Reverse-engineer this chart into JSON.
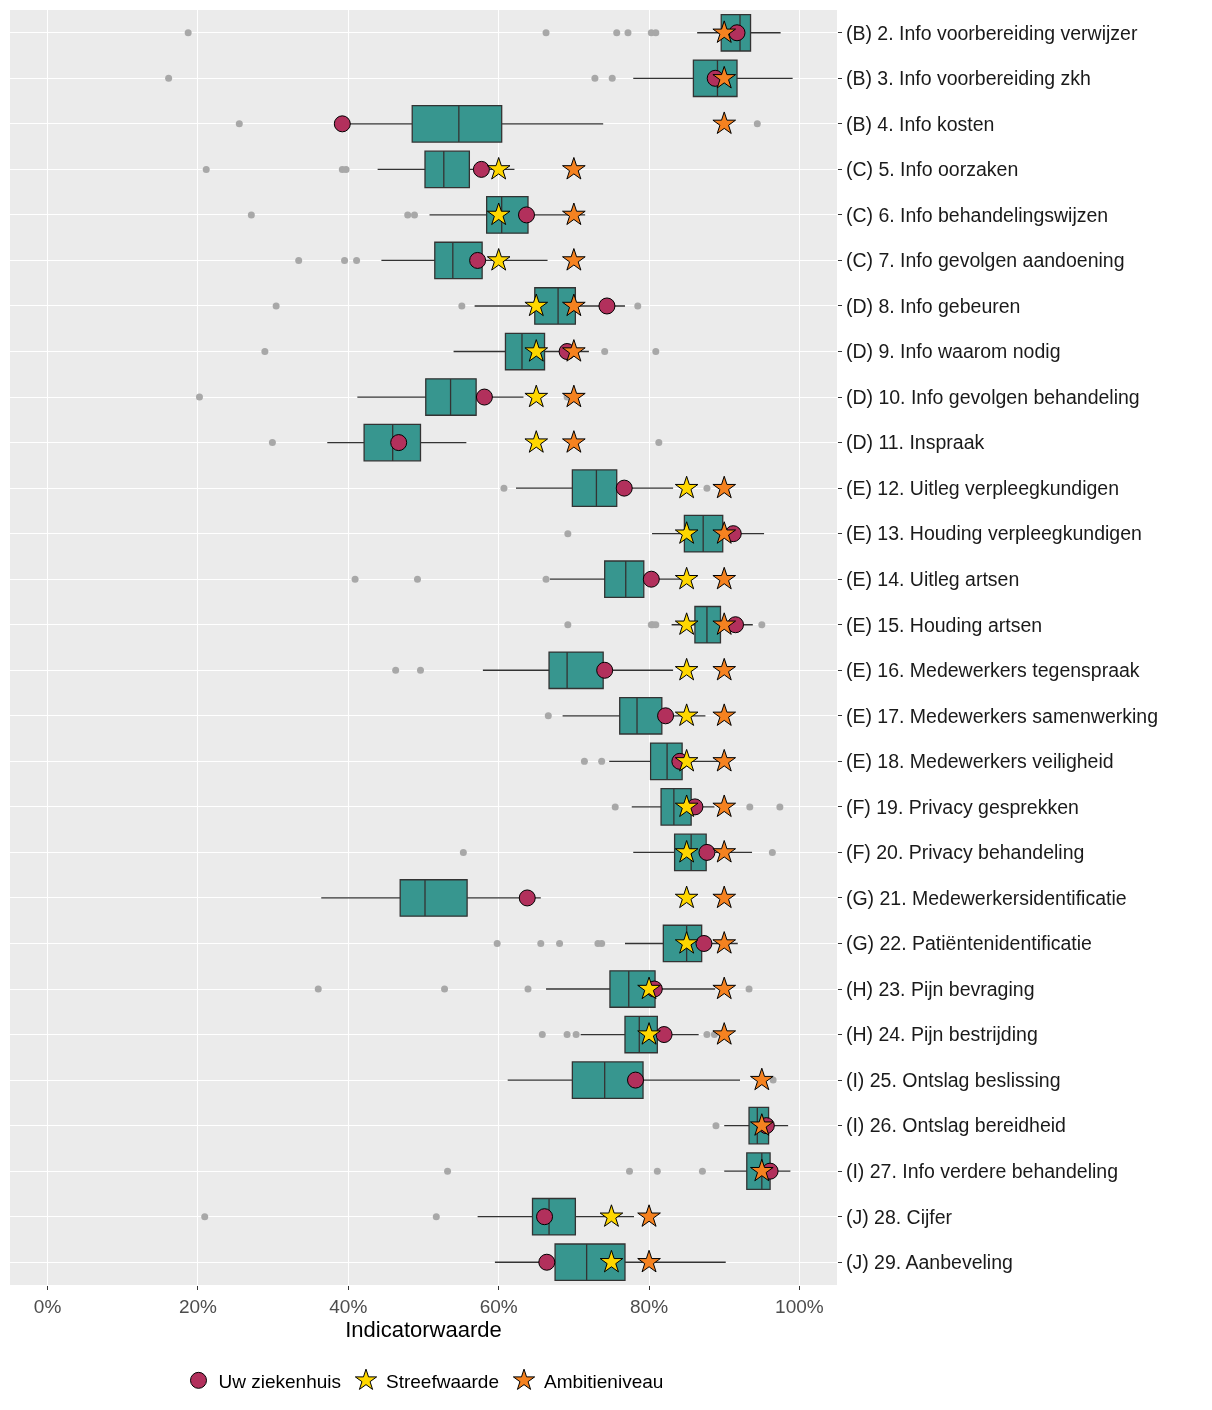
{
  "chart_data": {
    "type": "box",
    "orientation": "horizontal",
    "xlabel": "Indicatorwaarde",
    "grid": true,
    "legend": "bottom",
    "xlim": [
      -5,
      105
    ],
    "xticks": [
      {
        "value": 0,
        "label": "0%"
      },
      {
        "value": 20,
        "label": "20%"
      },
      {
        "value": 40,
        "label": "40%"
      },
      {
        "value": 60,
        "label": "60%"
      },
      {
        "value": 80,
        "label": "80%"
      },
      {
        "value": 100,
        "label": "100%"
      }
    ],
    "categories": [
      "(B) 2. Info voorbereiding verwijzer",
      "(B) 3. Info voorbereiding zkh",
      "(B) 4. Info kosten",
      "(C) 5. Info oorzaken",
      "(C) 6. Info behandelingswijzen",
      "(C) 7. Info gevolgen aandoening",
      "(D) 8. Info gebeuren",
      "(D) 9. Info waarom nodig",
      "(D) 10. Info gevolgen behandeling",
      "(D) 11. Inspraak",
      "(E) 12. Uitleg verpleegkundigen",
      "(E) 13. Houding verpleegkundigen",
      "(E) 14. Uitleg artsen",
      "(E) 15. Houding artsen",
      "(E) 16. Medewerkers tegenspraak",
      "(E) 17. Medewerkers samenwerking",
      "(E) 18. Medewerkers veiligheid",
      "(F) 19. Privacy gesprekken",
      "(F) 20. Privacy behandeling",
      "(G) 21. Medewerkersidentificatie",
      "(G) 22. Patiëntenidentificatie",
      "(H) 23. Pijn bevraging",
      "(H) 24. Pijn bestrijding",
      "(I) 25. Ontslag beslissing",
      "(I) 26. Ontslag bereidheid",
      "(I) 27. Info verdere behandeling",
      "(J) 28. Cijfer",
      "(J) 29. Aanbeveling"
    ],
    "series": [
      {
        "color": "#37968f",
        "boxes": [
          {
            "low": 86.4,
            "q1": 89.6,
            "median": 92.1,
            "q3": 93.5,
            "high": 97.5,
            "outliers": [
              18.7,
              66.3,
              75.7,
              77.2,
              80.3,
              80.9
            ]
          },
          {
            "low": 77.9,
            "q1": 85.9,
            "median": 89.1,
            "q3": 91.7,
            "high": 99.1,
            "outliers": [
              16.1,
              72.8,
              75.1
            ]
          },
          {
            "low": 39.5,
            "q1": 48.5,
            "median": 54.7,
            "q3": 60.4,
            "high": 73.9,
            "outliers": [
              25.5,
              94.4
            ]
          },
          {
            "low": 43.9,
            "q1": 50.2,
            "median": 52.7,
            "q3": 56.1,
            "high": 62.1,
            "outliers": [
              21.1,
              39.2,
              39.7
            ]
          },
          {
            "low": 50.8,
            "q1": 58.4,
            "median": 60.4,
            "q3": 63.9,
            "high": 71.5,
            "outliers": [
              27.1,
              47.9,
              48.8
            ]
          },
          {
            "low": 44.4,
            "q1": 51.5,
            "median": 53.9,
            "q3": 57.8,
            "high": 66.5,
            "outliers": [
              33.4,
              39.5,
              41.1
            ]
          },
          {
            "low": 56.8,
            "q1": 64.8,
            "median": 67.9,
            "q3": 70.2,
            "high": 76.8,
            "outliers": [
              30.4,
              55.1,
              78.5
            ]
          },
          {
            "low": 54.0,
            "q1": 60.9,
            "median": 63.1,
            "q3": 66.1,
            "high": 72.0,
            "outliers": [
              28.9,
              74.1,
              80.9
            ]
          },
          {
            "low": 41.2,
            "q1": 50.3,
            "median": 53.6,
            "q3": 57.0,
            "high": 63.3,
            "outliers": [
              20.2,
              69.1
            ]
          },
          {
            "low": 37.2,
            "q1": 42.1,
            "median": 45.9,
            "q3": 49.6,
            "high": 55.7,
            "outliers": [
              29.9,
              81.3
            ]
          },
          {
            "low": 62.3,
            "q1": 69.8,
            "median": 73.0,
            "q3": 75.7,
            "high": 83.2,
            "outliers": [
              60.7,
              87.7
            ]
          },
          {
            "low": 80.4,
            "q1": 84.7,
            "median": 87.2,
            "q3": 89.8,
            "high": 95.3,
            "outliers": [
              69.2
            ]
          },
          {
            "low": 66.8,
            "q1": 74.1,
            "median": 76.9,
            "q3": 79.3,
            "high": 84.5,
            "outliers": [
              40.9,
              49.2,
              66.3
            ]
          },
          {
            "low": 83.0,
            "q1": 86.1,
            "median": 87.7,
            "q3": 89.5,
            "high": 93.8,
            "outliers": [
              69.2,
              80.3,
              80.5,
              80.9,
              95.0
            ]
          },
          {
            "low": 57.9,
            "q1": 66.7,
            "median": 69.1,
            "q3": 73.9,
            "high": 83.2,
            "outliers": [
              46.3,
              49.6
            ]
          },
          {
            "low": 68.5,
            "q1": 76.1,
            "median": 78.4,
            "q3": 81.7,
            "high": 87.5,
            "outliers": [
              66.6
            ]
          },
          {
            "low": 74.7,
            "q1": 80.2,
            "median": 82.4,
            "q3": 84.4,
            "high": 89.5,
            "outliers": [
              71.4,
              73.7
            ]
          },
          {
            "low": 77.7,
            "q1": 81.6,
            "median": 83.3,
            "q3": 85.6,
            "high": 88.7,
            "outliers": [
              75.5,
              93.4,
              97.4
            ]
          },
          {
            "low": 77.9,
            "q1": 83.4,
            "median": 85.6,
            "q3": 87.6,
            "high": 93.7,
            "outliers": [
              55.3,
              96.4
            ]
          },
          {
            "low": 36.4,
            "q1": 46.9,
            "median": 50.2,
            "q3": 55.8,
            "high": 65.6
          },
          {
            "low": 76.8,
            "q1": 81.9,
            "median": 85.0,
            "q3": 87.0,
            "high": 91.8,
            "outliers": [
              59.8,
              65.6,
              68.1,
              73.2,
              73.7
            ]
          },
          {
            "low": 66.3,
            "q1": 74.8,
            "median": 77.3,
            "q3": 80.8,
            "high": 88.8,
            "outliers": [
              36.0,
              52.8,
              63.9,
              93.3
            ]
          },
          {
            "low": 70.9,
            "q1": 76.8,
            "median": 78.7,
            "q3": 81.1,
            "high": 86.6,
            "outliers": [
              65.8,
              69.1,
              70.3,
              87.7,
              88.7
            ]
          },
          {
            "low": 61.2,
            "q1": 69.8,
            "median": 74.1,
            "q3": 79.2,
            "high": 92.1,
            "outliers": [
              96.5
            ]
          },
          {
            "low": 90.0,
            "q1": 93.3,
            "median": 94.4,
            "q3": 95.9,
            "high": 98.5,
            "outliers": [
              88.9
            ]
          },
          {
            "low": 90.0,
            "q1": 93.0,
            "median": 95.0,
            "q3": 96.1,
            "high": 98.8,
            "outliers": [
              53.2,
              77.4,
              81.1,
              87.1
            ]
          },
          {
            "low": 57.2,
            "q1": 64.5,
            "median": 66.7,
            "q3": 70.2,
            "high": 78.0,
            "outliers": [
              20.9,
              51.7
            ]
          },
          {
            "low": 59.5,
            "q1": 67.5,
            "median": 71.7,
            "q3": 76.8,
            "high": 90.2
          }
        ]
      },
      {
        "type": "scatter",
        "name": "Uw ziekenhuis",
        "color": "#b2305c",
        "marker": "circle",
        "values": [
          91.7,
          88.8,
          39.2,
          57.7,
          63.7,
          57.2,
          74.4,
          69.1,
          58.1,
          46.7,
          76.7,
          91.2,
          80.3,
          91.5,
          74.1,
          82.2,
          84.1,
          86.1,
          87.7,
          63.8,
          87.3,
          80.7,
          82.0,
          78.2,
          95.6,
          96.1,
          66.1,
          66.4
        ]
      },
      {
        "type": "scatter",
        "name": "Streefwaarde",
        "color": "#ffd700",
        "marker": "star",
        "values": [
          null,
          null,
          null,
          60,
          60,
          60,
          65,
          65,
          65,
          65,
          85,
          85,
          85,
          85,
          85,
          85,
          85,
          85,
          85,
          85,
          85,
          80,
          80,
          null,
          null,
          null,
          75,
          75
        ]
      },
      {
        "type": "scatter",
        "name": "Ambitieniveau",
        "color": "#f58220",
        "marker": "star",
        "values": [
          90,
          90,
          90,
          70,
          70,
          70,
          70,
          70,
          70,
          70,
          90,
          90,
          90,
          90,
          90,
          90,
          90,
          90,
          90,
          90,
          90,
          90,
          90,
          95,
          95,
          95,
          80,
          80
        ]
      }
    ]
  }
}
